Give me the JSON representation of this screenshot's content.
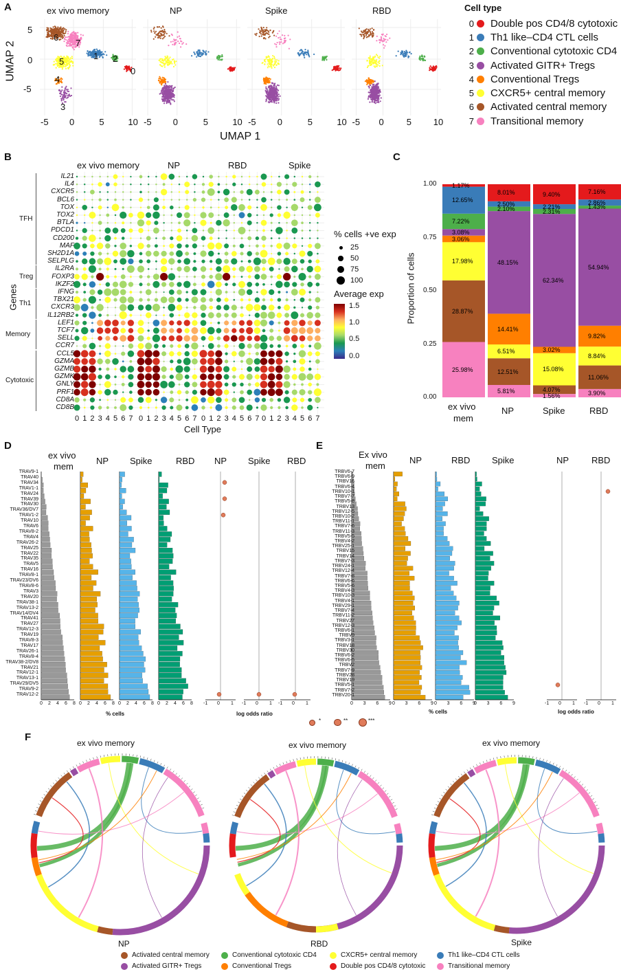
{
  "colors": {
    "c0": "#e41a1c",
    "c1": "#3a7cb8",
    "c2": "#4daf4a",
    "c3": "#984ea3",
    "c4": "#ff7f00",
    "c5": "#ffff33",
    "c6": "#a65628",
    "c7": "#f781bf",
    "gray": "#999999",
    "np": "#e69f00",
    "spike": "#56b4e9",
    "rbd": "#009e73"
  },
  "panelA": {
    "letter": "A",
    "plots": [
      "ex vivo memory",
      "NP",
      "Spike",
      "RBD"
    ],
    "ylabel": "UMAP 2",
    "xlabel": "UMAP 1",
    "yticks": [
      "5",
      "0",
      "-5"
    ],
    "xticks": [
      "-5",
      "0",
      "5",
      "10"
    ],
    "cluster_labels": [
      "6",
      "7",
      "1",
      "2",
      "5",
      "0",
      "4",
      "3"
    ],
    "legend_title": "Cell type",
    "legend": [
      {
        "num": "0",
        "label": "Double pos CD4/8 cytotoxic",
        "color": "#e41a1c"
      },
      {
        "num": "1",
        "label": "Th1 like–CD4 CTL cells",
        "color": "#3a7cb8"
      },
      {
        "num": "2",
        "label": "Conventional cytotoxic CD4",
        "color": "#4daf4a"
      },
      {
        "num": "3",
        "label": "Activated GITR+ Tregs",
        "color": "#984ea3"
      },
      {
        "num": "4",
        "label": "Conventional Tregs",
        "color": "#ff7f00"
      },
      {
        "num": "5",
        "label": "CXCR5+ central memory",
        "color": "#ffff33"
      },
      {
        "num": "6",
        "label": "Activated central memory",
        "color": "#a65628"
      },
      {
        "num": "7",
        "label": "Transitional memory",
        "color": "#f781bf"
      }
    ]
  },
  "panelB": {
    "letter": "B",
    "groups": [
      "ex vivo memory",
      "NP",
      "RBD",
      "Spike"
    ],
    "ylabel": "Genes",
    "xlabel": "Cell Type",
    "xticks": [
      "0",
      "1",
      "2",
      "3",
      "4",
      "5",
      "6",
      "7"
    ],
    "genes": [
      "IL21",
      "IL4",
      "CXCR5",
      "BCL6",
      "TOX",
      "TOX2",
      "BTLA",
      "PDCD1",
      "CD200",
      "MAF",
      "SH2D1A",
      "SELPLG",
      "IL2RA",
      "FOXP3",
      "IKZF2",
      "IFNG",
      "TBX21",
      "CXCR3",
      "IL12RB2",
      "LEF1",
      "TCF7",
      "SELL",
      "CCR7",
      "CCL5",
      "GZMA",
      "GZMB",
      "GZMK",
      "GNLY",
      "PRF1",
      "CD8A",
      "CD8B"
    ],
    "gene_groups": [
      {
        "label": "TFH",
        "from": 0,
        "to": 11
      },
      {
        "label": "Treg",
        "from": 12,
        "to": 14
      },
      {
        "label": "Th1",
        "from": 15,
        "to": 18
      },
      {
        "label": "Memory",
        "from": 19,
        "to": 22
      },
      {
        "label": "Cytotoxic",
        "from": 23,
        "to": 30
      }
    ],
    "size_legend_title": "% cells +ve exp",
    "size_legend": [
      "25",
      "50",
      "75",
      "100"
    ],
    "color_legend_title": "Average exp",
    "color_legend": [
      "1.5",
      "1.0",
      "0.5",
      "0.0"
    ]
  },
  "panelC": {
    "letter": "C",
    "ylabel": "Proportion of cells",
    "yticks": [
      "1.00",
      "0.75",
      "0.50",
      "0.25",
      "0.00"
    ],
    "categories": [
      "ex vivo\nmem",
      "NP",
      "Spike",
      "RBD"
    ],
    "category_labels": [
      "ex vivo",
      "mem",
      "NP",
      "Spike",
      "RBD"
    ],
    "stack_order": [
      "c7",
      "c6",
      "c5",
      "c4",
      "c3",
      "c2",
      "c1",
      "c0"
    ],
    "columns": [
      {
        "name": "ex vivo mem",
        "c7": 25.98,
        "c6": 28.87,
        "c5": 17.98,
        "c4": 3.06,
        "c3": 3.08,
        "c2": 7.22,
        "c1": 12.65,
        "c0": 1.17,
        "labels": {
          "c7": "25.98%",
          "c6": "28.87%",
          "c5": "17.98%",
          "c4": "3.06%",
          "c3": "3.08%",
          "c2": "7.22%",
          "c1": "12.65%",
          "c0": "1.17%"
        }
      },
      {
        "name": "NP",
        "c7": 5.81,
        "c6": 12.51,
        "c5": 6.51,
        "c4": 14.41,
        "c3": 48.15,
        "c2": 2.1,
        "c1": 2.5,
        "c0": 8.01,
        "labels": {
          "c7": "5.81%",
          "c6": "12.51%",
          "c5": "6.51%",
          "c4": "14.41%",
          "c3": "48.15%",
          "c2": "2.10%",
          "c1": "2.50%",
          "c0": "8.01%"
        }
      },
      {
        "name": "Spike",
        "c7": 1.56,
        "c6": 4.07,
        "c5": 15.08,
        "c4": 3.02,
        "c3": 62.34,
        "c2": 2.31,
        "c1": 2.21,
        "c0": 9.4,
        "labels": {
          "c7": "1.56%",
          "c6": "4.07%",
          "c5": "15.08%",
          "c4": "3.02%",
          "c3": "62.34%",
          "c2": "2.31%",
          "c1": "2.21%",
          "c0": "9.40%"
        }
      },
      {
        "name": "RBD",
        "c7": 3.9,
        "c6": 11.06,
        "c5": 8.84,
        "c4": 9.82,
        "c3": 54.94,
        "c2": 1.43,
        "c1": 2.86,
        "c0": 7.16,
        "labels": {
          "c7": "3.90%",
          "c6": "11.06%",
          "c5": "8.84%",
          "c4": "9.82%",
          "c3": "54.94%",
          "c2": "1.43%",
          "c1": "2.86%",
          "c0": "7.16%"
        }
      }
    ]
  },
  "panelD": {
    "letter": "D",
    "bar_titles": [
      "ex vivo",
      "mem",
      "NP",
      "Spike",
      "RBD"
    ],
    "or_titles": [
      "NP",
      "Spike",
      "RBD"
    ],
    "genes": [
      "TRAV9-1",
      "TRAV40",
      "TRAV34",
      "TRAV1-1",
      "TRAV24",
      "TRAV39",
      "TRAV30",
      "TRAV36/DV7",
      "TRAV1-2",
      "TRAV10",
      "TRAV6",
      "TRAV8-2",
      "TRAV4",
      "TRAV26-2",
      "TRAV25",
      "TRAV22",
      "TRAV35",
      "TRAV5",
      "TRAV16",
      "TRAV8-1",
      "TRAV23/DV6",
      "TRAV8-6",
      "TRAV3",
      "TRAV20",
      "TRAV38-1",
      "TRAV13-2",
      "TRAV14/DV4",
      "TRAV41",
      "TRAV27",
      "TRAV12-3",
      "TRAV19",
      "TRAV8-3",
      "TRAV17",
      "TRAV26-1",
      "TRAV8-4",
      "TRAV38-2/DV8",
      "TRAV21",
      "TRAV12-1",
      "TRAV13-1",
      "TRAV29/DV5",
      "TRAV9-2",
      "TRAV12-2"
    ],
    "bar_xticks": [
      "0",
      "2",
      "4",
      "6",
      "8"
    ],
    "or_xticks": [
      "-1",
      "0",
      "1"
    ],
    "xlabel_bars": "% cells",
    "xlabel_or": "log odds ratio",
    "significance": [
      "*",
      "**",
      "***"
    ]
  },
  "panelE": {
    "letter": "E",
    "bar_titles": [
      "Ex vivo",
      "mem",
      "NP",
      "RBD",
      "Spike"
    ],
    "or_titles": [
      "NP",
      "RBD"
    ],
    "genes": [
      "TRBV6-7",
      "TRBV6-9",
      "TRBV16",
      "TRBV6-4",
      "TRBV10-1",
      "TRBV7-7",
      "TRBV5-8",
      "TRBV13",
      "TRBV12-5",
      "TRBV10-2",
      "TRBV11-1",
      "TRBV7-6",
      "TRBV11-3",
      "TRBV5-5",
      "TRBV4-2",
      "TRBV25-1",
      "TRBV15",
      "TRBV14",
      "TRBV7-3",
      "TRBV24-1",
      "TRBV12-4",
      "TRBV7-8",
      "TRBV6-6",
      "TRBV5-6",
      "TRBV4-3",
      "TRBV10-3",
      "TRBV4-1",
      "TRBV29-1",
      "TRBV7-4",
      "TRBV11-2",
      "TRBV27",
      "TRBV12-3",
      "TRBV6-1",
      "TRBV9",
      "TRBV3-1",
      "TRBV18",
      "TRBV30",
      "TRBV6-2",
      "TRBV6-5",
      "TRBV2",
      "TRBV7-9",
      "TRBV28",
      "TRBV19",
      "TRBV5-1",
      "TRBV7-2",
      "TRBV20-1"
    ],
    "bar_xticks": [
      "0",
      "3",
      "6",
      "9"
    ],
    "or_xticks": [
      "-1",
      "0",
      "1"
    ],
    "xlabel_bars": "% cells",
    "xlabel_or": "log odds ratio"
  },
  "panelF": {
    "letter": "F",
    "chords": [
      {
        "top": "ex vivo memory",
        "bottom": "NP"
      },
      {
        "top": "ex vivo memory",
        "bottom": "RBD"
      },
      {
        "top": "ex vivo memory",
        "bottom": "Spike"
      }
    ],
    "legend": [
      {
        "label": "Activated central memory",
        "color": "#a65628"
      },
      {
        "label": "Conventional cytotoxic CD4",
        "color": "#4daf4a"
      },
      {
        "label": "CXCR5+ central memory",
        "color": "#ffff33"
      },
      {
        "label": "Th1 like–CD4 CTL cells",
        "color": "#3a7cb8"
      },
      {
        "label": "Activated GITR+ Tregs",
        "color": "#984ea3"
      },
      {
        "label": "Conventional Tregs",
        "color": "#ff7f00"
      },
      {
        "label": "Double pos CD4/8 cytotoxic",
        "color": "#e41a1c"
      },
      {
        "label": "Transitional memory",
        "color": "#f781bf"
      }
    ]
  }
}
